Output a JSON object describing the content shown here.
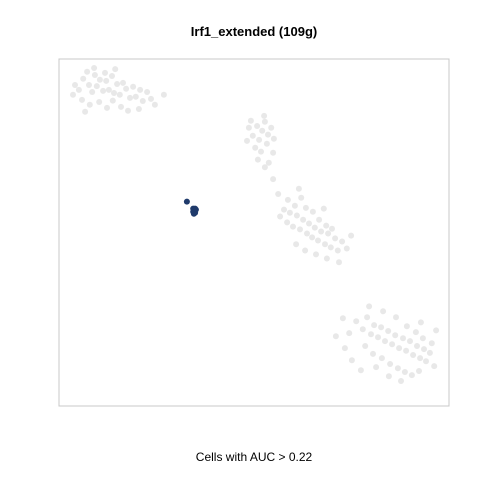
{
  "chart_data": {
    "type": "scatter",
    "title": "Irf1_extended (109g)",
    "xlabel": "Cells with AUC > 0.22",
    "ylabel": "",
    "xlim": [
      0,
      100
    ],
    "ylim": [
      0,
      100
    ],
    "grid": false,
    "legend": "none",
    "colors": {
      "background_points": "#e0e0e0",
      "highlight_points": "#1f3a6b",
      "axis_box": "#c8c8c8"
    },
    "series": [
      {
        "role": "cells-below-threshold",
        "points": [
          [
            4.1,
            92.5
          ],
          [
            5.1,
            91.1
          ],
          [
            6.2,
            94.3
          ],
          [
            7.2,
            96.3
          ],
          [
            7.7,
            92.5
          ],
          [
            8.5,
            90.5
          ],
          [
            9.2,
            95.4
          ],
          [
            9.7,
            92.2
          ],
          [
            10.5,
            94.0
          ],
          [
            11.3,
            90.8
          ],
          [
            12.1,
            93.7
          ],
          [
            12.8,
            91.1
          ],
          [
            13.6,
            95.1
          ],
          [
            14.1,
            90.2
          ],
          [
            14.9,
            92.8
          ],
          [
            15.6,
            89.7
          ],
          [
            16.4,
            93.1
          ],
          [
            17.2,
            91.4
          ],
          [
            18.2,
            88.8
          ],
          [
            19.0,
            92.0
          ],
          [
            19.7,
            89.1
          ],
          [
            20.8,
            91.1
          ],
          [
            21.5,
            87.9
          ],
          [
            22.6,
            90.5
          ],
          [
            23.6,
            88.5
          ],
          [
            5.9,
            88.2
          ],
          [
            7.9,
            86.8
          ],
          [
            10.3,
            87.6
          ],
          [
            12.3,
            85.9
          ],
          [
            13.8,
            88.0
          ],
          [
            15.9,
            86.2
          ],
          [
            17.7,
            85.1
          ],
          [
            3.6,
            89.7
          ],
          [
            9.0,
            97.4
          ],
          [
            11.8,
            96.0
          ],
          [
            14.4,
            97.1
          ],
          [
            20.5,
            85.6
          ],
          [
            24.6,
            86.8
          ],
          [
            26.9,
            89.7
          ],
          [
            6.7,
            84.8
          ],
          [
            48.7,
            80.2
          ],
          [
            49.7,
            77.9
          ],
          [
            50.8,
            80.7
          ],
          [
            51.3,
            76.7
          ],
          [
            52.1,
            79.3
          ],
          [
            52.8,
            81.9
          ],
          [
            53.6,
            78.2
          ],
          [
            54.4,
            80.2
          ],
          [
            48.2,
            76.4
          ],
          [
            50.3,
            74.4
          ],
          [
            51.8,
            73.3
          ],
          [
            53.3,
            75.6
          ],
          [
            54.9,
            73.0
          ],
          [
            49.2,
            82.2
          ],
          [
            52.6,
            83.6
          ],
          [
            51.0,
            71.0
          ],
          [
            53.8,
            70.1
          ],
          [
            55.1,
            77.0
          ],
          [
            56.7,
            54.6
          ],
          [
            57.7,
            56.6
          ],
          [
            58.5,
            52.9
          ],
          [
            59.2,
            55.7
          ],
          [
            60.0,
            51.7
          ],
          [
            61.0,
            54.9
          ],
          [
            61.8,
            50.9
          ],
          [
            62.6,
            53.7
          ],
          [
            63.6,
            49.7
          ],
          [
            64.1,
            52.6
          ],
          [
            64.9,
            48.6
          ],
          [
            65.6,
            51.4
          ],
          [
            66.4,
            47.7
          ],
          [
            67.2,
            50.3
          ],
          [
            68.2,
            46.6
          ],
          [
            69.0,
            49.7
          ],
          [
            69.7,
            45.7
          ],
          [
            70.8,
            48.3
          ],
          [
            71.5,
            44.8
          ],
          [
            72.6,
            47.4
          ],
          [
            58.7,
            59.4
          ],
          [
            60.5,
            57.7
          ],
          [
            62.1,
            60.0
          ],
          [
            63.3,
            57.1
          ],
          [
            65.1,
            56.0
          ],
          [
            66.7,
            53.7
          ],
          [
            68.5,
            52.0
          ],
          [
            70.0,
            51.1
          ],
          [
            60.8,
            46.6
          ],
          [
            63.1,
            44.8
          ],
          [
            65.9,
            43.7
          ],
          [
            68.7,
            42.5
          ],
          [
            71.8,
            41.4
          ],
          [
            73.8,
            45.4
          ],
          [
            56.2,
            61.1
          ],
          [
            54.9,
            65.4
          ],
          [
            52.8,
            68.8
          ],
          [
            74.9,
            49.1
          ],
          [
            67.9,
            56.9
          ],
          [
            61.5,
            62.6
          ],
          [
            76.2,
            24.4
          ],
          [
            77.9,
            22.1
          ],
          [
            79.0,
            25.6
          ],
          [
            80.0,
            20.7
          ],
          [
            80.8,
            23.3
          ],
          [
            81.8,
            19.8
          ],
          [
            82.6,
            22.7
          ],
          [
            83.6,
            18.7
          ],
          [
            84.4,
            21.6
          ],
          [
            85.4,
            17.8
          ],
          [
            86.2,
            20.4
          ],
          [
            87.2,
            16.7
          ],
          [
            88.2,
            19.5
          ],
          [
            89.0,
            15.9
          ],
          [
            90.0,
            18.7
          ],
          [
            90.8,
            14.7
          ],
          [
            91.8,
            17.3
          ],
          [
            92.6,
            13.8
          ],
          [
            93.6,
            16.4
          ],
          [
            94.1,
            12.9
          ],
          [
            78.5,
            17.3
          ],
          [
            80.5,
            15.0
          ],
          [
            82.8,
            13.8
          ],
          [
            84.9,
            12.1
          ],
          [
            86.9,
            10.9
          ],
          [
            88.7,
            9.8
          ],
          [
            90.5,
            8.9
          ],
          [
            92.3,
            10.1
          ],
          [
            83.1,
            27.3
          ],
          [
            86.4,
            25.6
          ],
          [
            89.2,
            23.0
          ],
          [
            91.5,
            21.3
          ],
          [
            93.3,
            19.5
          ],
          [
            95.1,
            15.3
          ],
          [
            95.6,
            18.1
          ],
          [
            74.4,
            21.0
          ],
          [
            72.8,
            25.3
          ],
          [
            75.1,
            13.2
          ],
          [
            79.5,
            28.7
          ],
          [
            96.2,
            11.5
          ],
          [
            81.3,
            11.2
          ],
          [
            87.7,
            7.2
          ],
          [
            92.8,
            24.1
          ],
          [
            77.4,
            10.3
          ],
          [
            84.6,
            8.6
          ],
          [
            71.0,
            20.1
          ],
          [
            73.3,
            16.7
          ],
          [
            96.7,
            21.8
          ]
        ]
      },
      {
        "role": "cells-above-threshold",
        "points": [
          [
            32.8,
            58.9
          ],
          [
            34.4,
            56.9
          ],
          [
            34.6,
            56.3
          ],
          [
            34.9,
            55.7
          ],
          [
            34.4,
            56.0
          ],
          [
            35.1,
            56.6
          ],
          [
            34.6,
            55.4
          ],
          [
            34.9,
            56.9
          ]
        ]
      }
    ]
  }
}
